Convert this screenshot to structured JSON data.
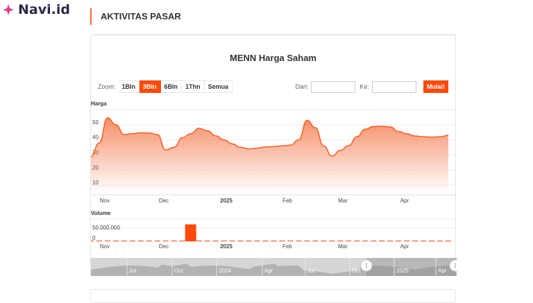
{
  "brand": {
    "name": "Navi.id",
    "color": "#e8358a"
  },
  "section_title": "AKTIVITAS PASAR",
  "chart": {
    "title": "MENN Harga Saham",
    "zoom_label": "Zoom:",
    "zoom_buttons": [
      "1Bln",
      "3Bln",
      "6Bln",
      "1Thn",
      "Semua"
    ],
    "active_zoom": "3Bln",
    "from_label": "Dari:",
    "from_value": "",
    "to_label": "Ke:",
    "to_value": "",
    "go_label": "Mulai!",
    "accent": "#ff4a0a"
  },
  "chart_data": [
    {
      "type": "area",
      "title": "Harga",
      "yticks": [
        "10",
        "20",
        "30",
        "40",
        "50"
      ],
      "ylim": [
        5,
        60
      ],
      "x_labels": [
        "Nov",
        "Dec",
        "2025",
        "Feb",
        "Mar",
        "Apr"
      ],
      "values": [
        29,
        38,
        54.5,
        50,
        43.5,
        44,
        44.7,
        44.5,
        43.5,
        33.3,
        35,
        41.4,
        44,
        47.6,
        46,
        42.7,
        40,
        37.3,
        35,
        34,
        34.5,
        35.3,
        35.5,
        36,
        36.5,
        40,
        52.9,
        48,
        36,
        29.2,
        33,
        36.1,
        42,
        47,
        48.8,
        49,
        48.5,
        45.5,
        44,
        42.5,
        42,
        41.8,
        42,
        43
      ]
    },
    {
      "type": "bar",
      "title": "Volume",
      "yticks": [
        "0",
        "50.000.000"
      ],
      "ylim": [
        0,
        75000000
      ],
      "x_labels": [
        "Nov",
        "Dec",
        "2025",
        "Feb",
        "Mar",
        "Apr"
      ],
      "values": [
        0.5,
        0.5,
        0.5,
        0.5,
        0.5,
        0.5,
        0.5,
        0.5,
        0.5,
        0.5,
        0.5,
        0.5,
        57,
        0.5,
        0.5,
        0.5,
        0.5,
        0.5,
        2,
        0.5,
        0.5,
        0.5,
        2,
        0.5,
        0.5,
        0.5,
        0.5,
        2,
        0.5,
        0.5,
        0.5,
        0.5,
        0.5,
        0.5,
        0.5,
        0.5,
        0.5,
        0.5,
        0.5,
        0.5,
        0.5,
        0.5,
        0.5,
        0.5
      ]
    },
    {
      "type": "navigator",
      "x_labels": [
        "Jul",
        "Oct",
        "2024",
        "Apr",
        "Jul",
        "Oct",
        "2025",
        "Apr"
      ]
    }
  ]
}
